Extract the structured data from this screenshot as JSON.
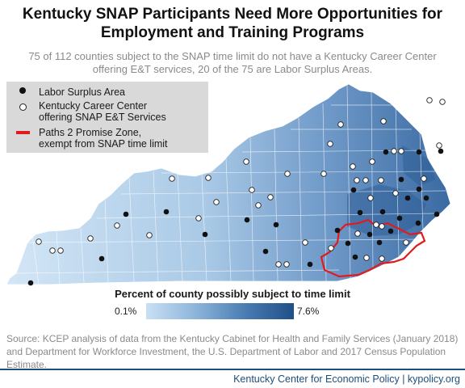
{
  "title": "Kentucky SNAP Participants Need More Opportunities for Employment and Training Programs",
  "subtitle": "75 of 112 counties subject to the SNAP time limit do not have  a Kentucky Career Center offering  E&T services, 20 of the 75 are Labor Surplus Areas.",
  "legend": {
    "labor_surplus": "Labor Surplus Area",
    "career_center": "Kentucky Career  Center offering  SNAP E&T Services",
    "promise_zone": "Paths 2 Promise Zone, exempt from SNAP time limit"
  },
  "scale": {
    "title": "Percent of county possibly  subject to time limit",
    "min_label": "0.1%",
    "max_label": "7.6%",
    "colors": [
      "#c9e0f4",
      "#8db5da",
      "#4a7db3",
      "#1f4f86"
    ]
  },
  "source": "Source: KCEP analysis of data from the Kentucky Cabinet for Health and Family Services (January 2018) and Department for Workforce Investment, the U.S. Department of Labor and 2017 Census Population Estimate.",
  "footer": "Kentucky Center for Economic Policy | kypolicy.org",
  "colors": {
    "promise_zone_outline": "#e31a1c",
    "footer_accent": "#1f4e79"
  }
}
